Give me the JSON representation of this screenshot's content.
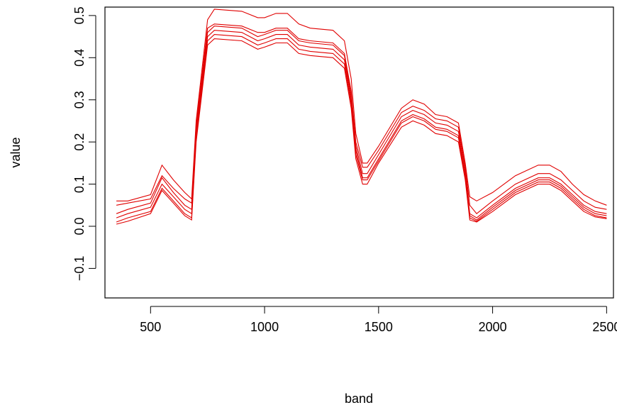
{
  "chart_data": {
    "type": "line",
    "title": "",
    "xlabel": "band",
    "ylabel": "value",
    "xlim": [
      350,
      2500
    ],
    "ylim": [
      -0.17,
      0.52
    ],
    "grid": false,
    "legend": "none",
    "line_color": "#e00000",
    "xticks": [
      500,
      1000,
      1500,
      2000,
      2500
    ],
    "yticks": [
      -0.1,
      0.0,
      0.1,
      0.2,
      0.3,
      0.4,
      0.5
    ],
    "xtick_labels": [
      "500",
      "1000",
      "1500",
      "2000",
      "2500"
    ],
    "ytick_labels": [
      "−0.1",
      "0.0",
      "0.1",
      "0.2",
      "0.3",
      "0.4",
      "0.5"
    ],
    "x": [
      350,
      400,
      500,
      550,
      600,
      650,
      680,
      700,
      750,
      780,
      900,
      970,
      1000,
      1050,
      1100,
      1150,
      1200,
      1300,
      1350,
      1380,
      1400,
      1430,
      1450,
      1500,
      1600,
      1650,
      1700,
      1750,
      1800,
      1850,
      1880,
      1900,
      1930,
      2000,
      2100,
      2200,
      2250,
      2300,
      2350,
      2400,
      2450,
      2500
    ],
    "series": [
      {
        "values": [
          0.06,
          0.06,
          0.075,
          0.145,
          0.11,
          0.08,
          0.065,
          0.25,
          0.49,
          0.515,
          0.51,
          0.495,
          0.495,
          0.505,
          0.505,
          0.48,
          0.47,
          0.465,
          0.44,
          0.35,
          0.22,
          0.15,
          0.15,
          0.19,
          0.28,
          0.3,
          0.29,
          0.265,
          0.26,
          0.245,
          0.15,
          0.07,
          0.06,
          0.08,
          0.12,
          0.145,
          0.145,
          0.13,
          0.1,
          0.075,
          0.06,
          0.05
        ]
      },
      {
        "values": [
          0.05,
          0.055,
          0.065,
          0.12,
          0.09,
          0.065,
          0.055,
          0.24,
          0.47,
          0.48,
          0.475,
          0.46,
          0.46,
          0.47,
          0.47,
          0.445,
          0.44,
          0.435,
          0.41,
          0.32,
          0.2,
          0.14,
          0.14,
          0.18,
          0.27,
          0.285,
          0.275,
          0.255,
          0.25,
          0.235,
          0.14,
          0.05,
          0.03,
          0.06,
          0.1,
          0.125,
          0.125,
          0.11,
          0.085,
          0.06,
          0.045,
          0.04
        ]
      },
      {
        "values": [
          0.03,
          0.04,
          0.055,
          0.115,
          0.08,
          0.05,
          0.04,
          0.23,
          0.46,
          0.475,
          0.47,
          0.45,
          0.455,
          0.465,
          0.465,
          0.44,
          0.435,
          0.43,
          0.405,
          0.31,
          0.19,
          0.125,
          0.125,
          0.17,
          0.26,
          0.275,
          0.265,
          0.245,
          0.24,
          0.225,
          0.13,
          0.03,
          0.02,
          0.05,
          0.09,
          0.115,
          0.115,
          0.1,
          0.075,
          0.05,
          0.035,
          0.03
        ]
      },
      {
        "values": [
          0.02,
          0.03,
          0.045,
          0.1,
          0.07,
          0.04,
          0.03,
          0.22,
          0.45,
          0.465,
          0.46,
          0.44,
          0.445,
          0.455,
          0.455,
          0.43,
          0.425,
          0.42,
          0.395,
          0.3,
          0.18,
          0.115,
          0.115,
          0.16,
          0.25,
          0.265,
          0.255,
          0.235,
          0.23,
          0.215,
          0.12,
          0.025,
          0.015,
          0.045,
          0.085,
          0.11,
          0.11,
          0.095,
          0.07,
          0.045,
          0.03,
          0.025
        ]
      },
      {
        "values": [
          0.01,
          0.02,
          0.035,
          0.09,
          0.06,
          0.03,
          0.02,
          0.21,
          0.44,
          0.455,
          0.45,
          0.43,
          0.435,
          0.445,
          0.445,
          0.42,
          0.415,
          0.41,
          0.385,
          0.29,
          0.17,
          0.11,
          0.11,
          0.155,
          0.245,
          0.26,
          0.25,
          0.23,
          0.225,
          0.21,
          0.115,
          0.02,
          0.012,
          0.04,
          0.08,
          0.105,
          0.105,
          0.09,
          0.065,
          0.04,
          0.025,
          0.02
        ]
      },
      {
        "values": [
          0.005,
          0.012,
          0.03,
          0.085,
          0.055,
          0.025,
          0.015,
          0.2,
          0.43,
          0.445,
          0.44,
          0.42,
          0.425,
          0.435,
          0.435,
          0.41,
          0.405,
          0.4,
          0.375,
          0.28,
          0.16,
          0.1,
          0.1,
          0.15,
          0.235,
          0.25,
          0.24,
          0.22,
          0.215,
          0.2,
          0.11,
          0.015,
          0.01,
          0.035,
          0.075,
          0.1,
          0.1,
          0.085,
          0.06,
          0.035,
          0.022,
          0.018
        ]
      }
    ]
  }
}
